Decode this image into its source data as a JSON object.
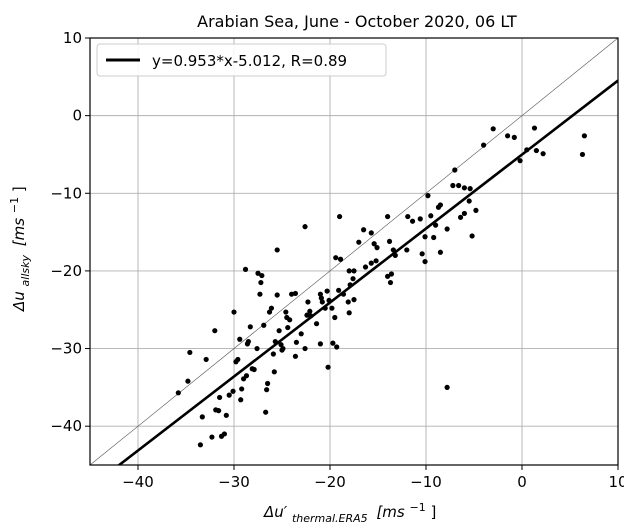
{
  "chart_data": {
    "type": "scatter",
    "title": "Arabian Sea, June - October 2020, 06 LT",
    "xlabel_main": "Δu′",
    "xlabel_sub": "thermal,ERA5",
    "xlabel_unit": "[ms",
    "xlabel_exp": "−1",
    "xlabel_close": "]",
    "ylabel_main": "Δu",
    "ylabel_sub": "allsky",
    "ylabel_unit": "[ms",
    "ylabel_exp": "−1",
    "ylabel_close": "]",
    "xlim": [
      -45,
      10
    ],
    "ylim": [
      -45,
      10
    ],
    "xticks": [
      -40,
      -30,
      -20,
      -10,
      0,
      10
    ],
    "yticks": [
      -40,
      -30,
      -20,
      -10,
      0,
      10
    ],
    "xtick_labels": [
      "−40",
      "−30",
      "−20",
      "−10",
      "0",
      "10"
    ],
    "ytick_labels": [
      "−40",
      "−30",
      "−20",
      "−10",
      "0",
      "10"
    ],
    "grid": true,
    "legend_position": "top-left",
    "legend_label": "y=0.953*x-5.012, R=0.89",
    "fit": {
      "slope": 0.953,
      "intercept": -5.012
    },
    "identity_line": true,
    "points": [
      [
        6.5,
        -2.6
      ],
      [
        6.3,
        -5.0
      ],
      [
        2.2,
        -4.9
      ],
      [
        1.5,
        -4.5
      ],
      [
        1.3,
        -1.6
      ],
      [
        0.5,
        -4.4
      ],
      [
        -0.2,
        -5.8
      ],
      [
        -0.8,
        -2.8
      ],
      [
        -1.5,
        -2.6
      ],
      [
        -3.0,
        -1.7
      ],
      [
        -4.0,
        -3.8
      ],
      [
        -4.8,
        -12.2
      ],
      [
        -5.5,
        -11.0
      ],
      [
        -5.2,
        -15.5
      ],
      [
        -5.4,
        -9.4
      ],
      [
        -6.0,
        -12.6
      ],
      [
        -6.0,
        -9.3
      ],
      [
        -6.4,
        -13.1
      ],
      [
        -6.6,
        -9.0
      ],
      [
        -7.0,
        -7.0
      ],
      [
        -7.2,
        -9.0
      ],
      [
        -7.8,
        -14.6
      ],
      [
        -7.8,
        -35.0
      ],
      [
        -8.5,
        -11.5
      ],
      [
        -8.5,
        -17.6
      ],
      [
        -8.7,
        -11.8
      ],
      [
        -9.0,
        -14.1
      ],
      [
        -9.2,
        -15.7
      ],
      [
        -9.5,
        -12.9
      ],
      [
        -9.8,
        -10.3
      ],
      [
        -10.1,
        -15.6
      ],
      [
        -10.1,
        -18.8
      ],
      [
        -10.4,
        -17.8
      ],
      [
        -10.6,
        -13.3
      ],
      [
        -11.4,
        -13.6
      ],
      [
        -11.9,
        -13.0
      ],
      [
        -12.0,
        -17.3
      ],
      [
        -13.2,
        -18.0
      ],
      [
        -13.4,
        -17.3
      ],
      [
        -13.6,
        -20.4
      ],
      [
        -13.7,
        -21.5
      ],
      [
        -13.8,
        -16.2
      ],
      [
        -14.0,
        -20.7
      ],
      [
        -14.0,
        -13.0
      ],
      [
        -15.1,
        -17.0
      ],
      [
        -15.2,
        -18.7
      ],
      [
        -15.4,
        -16.5
      ],
      [
        -15.7,
        -15.1
      ],
      [
        -15.7,
        -19.0
      ],
      [
        -16.3,
        -19.5
      ],
      [
        -16.5,
        -14.7
      ],
      [
        -17.0,
        -16.3
      ],
      [
        -17.5,
        -20.0
      ],
      [
        -17.6,
        -21.0
      ],
      [
        -17.5,
        -23.7
      ],
      [
        -17.9,
        -21.8
      ],
      [
        -18.0,
        -20.0
      ],
      [
        -18.1,
        -24.0
      ],
      [
        -18.6,
        -23.0
      ],
      [
        -18.9,
        -18.5
      ],
      [
        -19.0,
        -13.0
      ],
      [
        -19.1,
        -22.5
      ],
      [
        -19.3,
        -29.8
      ],
      [
        -19.4,
        -18.3
      ],
      [
        -19.5,
        -26.0
      ],
      [
        -19.7,
        -29.3
      ],
      [
        -19.8,
        -24.8
      ],
      [
        -20.1,
        -23.8
      ],
      [
        -20.3,
        -22.6
      ],
      [
        -20.5,
        -24.8
      ],
      [
        -20.8,
        -24.0
      ],
      [
        -20.9,
        -23.5
      ],
      [
        -21.0,
        -23.0
      ],
      [
        -21.4,
        -26.8
      ],
      [
        -22.0,
        -25.8
      ],
      [
        -22.1,
        -25.2
      ],
      [
        -22.3,
        -24.0
      ],
      [
        -22.4,
        -25.7
      ],
      [
        -22.6,
        -14.3
      ],
      [
        -22.6,
        -30.0
      ],
      [
        -23.0,
        -28.1
      ],
      [
        -23.5,
        -29.2
      ],
      [
        -23.6,
        -31.0
      ],
      [
        -23.6,
        -22.9
      ],
      [
        -24.0,
        -23.0
      ],
      [
        -24.2,
        -26.3
      ],
      [
        -24.4,
        -27.3
      ],
      [
        -24.5,
        -26.0
      ],
      [
        -24.6,
        -25.3
      ],
      [
        -24.9,
        -30.0
      ],
      [
        -25.0,
        -30.2
      ],
      [
        -25.1,
        -29.5
      ],
      [
        -25.3,
        -27.7
      ],
      [
        -25.5,
        -17.3
      ],
      [
        -25.5,
        -23.1
      ],
      [
        -25.7,
        -29.1
      ],
      [
        -25.8,
        -33.0
      ],
      [
        -25.9,
        -30.7
      ],
      [
        -26.1,
        -24.8
      ],
      [
        -26.3,
        -25.3
      ],
      [
        -26.5,
        -34.5
      ],
      [
        -26.6,
        -35.3
      ],
      [
        -26.7,
        -38.2
      ],
      [
        -26.9,
        -27.0
      ],
      [
        -27.1,
        -20.6
      ],
      [
        -27.2,
        -21.5
      ],
      [
        -27.3,
        -23.0
      ],
      [
        -27.5,
        -20.3
      ],
      [
        -27.6,
        -30.0
      ],
      [
        -27.9,
        -32.7
      ],
      [
        -28.1,
        -32.6
      ],
      [
        -28.3,
        -27.2
      ],
      [
        -28.5,
        -29.1
      ],
      [
        -28.6,
        -29.4
      ],
      [
        -28.7,
        -33.5
      ],
      [
        -28.8,
        -19.8
      ],
      [
        -29.0,
        -33.9
      ],
      [
        -29.2,
        -35.2
      ],
      [
        -29.3,
        -36.6
      ],
      [
        -29.4,
        -28.8
      ],
      [
        -29.6,
        -31.4
      ],
      [
        -29.8,
        -31.7
      ],
      [
        -30.1,
        -35.5
      ],
      [
        -30.5,
        -36.0
      ],
      [
        -30.8,
        -38.6
      ],
      [
        -31.0,
        -41.0
      ],
      [
        -31.3,
        -41.3
      ],
      [
        -31.6,
        -38.0
      ],
      [
        -31.9,
        -37.9
      ],
      [
        -32.0,
        -27.7
      ],
      [
        -32.3,
        -41.4
      ],
      [
        -32.9,
        -31.4
      ],
      [
        -33.3,
        -38.8
      ],
      [
        -33.5,
        -42.4
      ],
      [
        -34.6,
        -30.5
      ],
      [
        -34.8,
        -34.2
      ],
      [
        -35.8,
        -35.7
      ],
      [
        -30.0,
        -25.3
      ],
      [
        -31.5,
        -36.3
      ],
      [
        -18.0,
        -25.4
      ],
      [
        -21.0,
        -29.4
      ],
      [
        -20.2,
        -32.4
      ]
    ]
  }
}
